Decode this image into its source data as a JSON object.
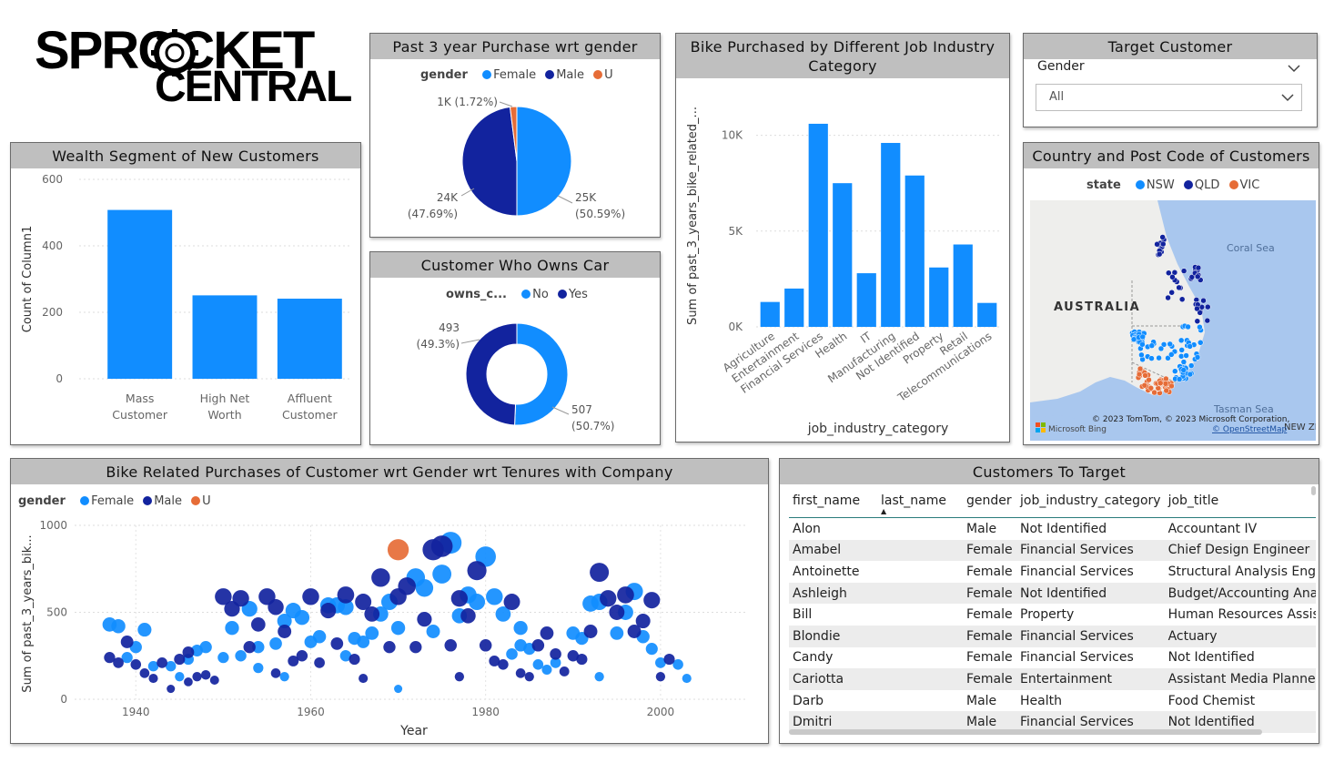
{
  "logo": {
    "line1": "SPROCKET",
    "line2": "CENTRAL"
  },
  "colors": {
    "female": "#118DFF",
    "male": "#12239E",
    "u": "#E66C37",
    "bar": "#118DFF",
    "title_bg": "#bfbfbf",
    "nsw": "#118DFF",
    "qld": "#12239E",
    "vic": "#E66C37"
  },
  "wealth": {
    "title": "Wealth Segment of New Customers",
    "chart_data": {
      "type": "bar",
      "categories": [
        "Mass Customer",
        "High Net Worth",
        "Affluent Customer"
      ],
      "category_lines": [
        [
          "Mass",
          "Customer"
        ],
        [
          "High Net",
          "Worth"
        ],
        [
          "Affluent",
          "Customer"
        ]
      ],
      "values": [
        508,
        251,
        241
      ],
      "ylabel": "Count of Column1",
      "yticks": [
        0,
        200,
        400,
        600
      ],
      "ylim": [
        0,
        600
      ],
      "grid": true
    }
  },
  "gender_pie": {
    "title": "Past 3 year Purchase wrt gender",
    "legend_title": "gender",
    "chart_data": {
      "type": "pie",
      "labels": [
        "Female",
        "Male",
        "U"
      ],
      "values": [
        25000,
        24000,
        1000
      ],
      "percent": [
        50.59,
        47.69,
        1.72
      ],
      "data_labels": [
        [
          "25K",
          "(50.59%)"
        ],
        [
          "24K",
          "(47.69%)"
        ],
        [
          "1K (1.72%)"
        ]
      ]
    }
  },
  "car": {
    "title": "Customer Who Owns Car",
    "legend_title": "owns_c...",
    "chart_data": {
      "type": "pie",
      "labels": [
        "No",
        "Yes"
      ],
      "values": [
        507,
        493
      ],
      "percent": [
        50.7,
        49.3
      ],
      "data_labels": [
        [
          "507",
          "(50.7%)"
        ],
        [
          "493",
          "(49.3%)"
        ]
      ]
    }
  },
  "industry": {
    "title_lines": [
      "Bike Purchased by Different Job Industry",
      "Category"
    ],
    "chart_data": {
      "type": "bar",
      "categories": [
        "Agriculture",
        "Entertainment",
        "Financial Services",
        "Health",
        "IT",
        "Manufacturing",
        "Not Identified",
        "Property",
        "Retail",
        "Telecommunications"
      ],
      "values": [
        1300,
        2000,
        10600,
        7500,
        2800,
        9600,
        7900,
        3100,
        4300,
        1250
      ],
      "ylabel": "Sum of past_3_years_bike_related_...",
      "xlabel": "job_industry_category",
      "yticks": [
        0,
        5000,
        10000
      ],
      "ytick_labels": [
        "0K",
        "5K",
        "10K"
      ],
      "ylim": [
        0,
        11500
      ],
      "grid": true
    }
  },
  "target": {
    "title": "Target Customer",
    "field": "Gender",
    "value": "All"
  },
  "map": {
    "title": "Country and Post Code of Customers",
    "legend_title": "state",
    "legend": [
      "NSW",
      "QLD",
      "VIC"
    ],
    "labels": {
      "country": "AUSTRALIA",
      "sea1": "Coral Sea",
      "sea2": "Tasman Sea",
      "nz": "NEW ZEA"
    },
    "attribution": "© 2023 TomTom, © 2023 Microsoft Corporation,",
    "osm": "© OpenStreetMap",
    "bing": "Microsoft Bing"
  },
  "tenure": {
    "title": "Bike Related Purchases of Customer wrt Gender wrt Tenures with Company",
    "legend_title": "gender",
    "chart_data": {
      "type": "scatter",
      "xlabel": "Year",
      "ylabel": "Sum of past_3_years_bik...",
      "xticks": [
        1940,
        1960,
        1980,
        2000
      ],
      "yticks": [
        0,
        500,
        1000
      ],
      "xlim": [
        1933,
        2010
      ],
      "ylim": [
        0,
        1000
      ],
      "series": [
        {
          "name": "Female",
          "points": [
            [
              1937,
              430
            ],
            [
              1938,
              420
            ],
            [
              1939,
              240
            ],
            [
              1940,
              300
            ],
            [
              1941,
              400
            ],
            [
              1942,
              190
            ],
            [
              1944,
              190
            ],
            [
              1946,
              230
            ],
            [
              1947,
              280
            ],
            [
              1948,
              300
            ],
            [
              1950,
              240
            ],
            [
              1951,
              410
            ],
            [
              1952,
              250
            ],
            [
              1953,
              520
            ],
            [
              1954,
              300
            ],
            [
              1956,
              320
            ],
            [
              1957,
              450
            ],
            [
              1958,
              510
            ],
            [
              1959,
              470
            ],
            [
              1960,
              330
            ],
            [
              1961,
              360
            ],
            [
              1962,
              540
            ],
            [
              1963,
              540
            ],
            [
              1964,
              530
            ],
            [
              1965,
              350
            ],
            [
              1966,
              330
            ],
            [
              1967,
              380
            ],
            [
              1968,
              490
            ],
            [
              1969,
              560
            ],
            [
              1970,
              410
            ],
            [
              1972,
              700
            ],
            [
              1973,
              640
            ],
            [
              1974,
              390
            ],
            [
              1975,
              720
            ],
            [
              1976,
              900
            ],
            [
              1977,
              480
            ],
            [
              1978,
              600
            ],
            [
              1979,
              560
            ],
            [
              1980,
              820
            ],
            [
              1981,
              590
            ],
            [
              1982,
              490
            ],
            [
              1983,
              260
            ],
            [
              1984,
              410
            ],
            [
              1985,
              290
            ],
            [
              1986,
              200
            ],
            [
              1988,
              210
            ],
            [
              1990,
              380
            ],
            [
              1991,
              350
            ],
            [
              1992,
              550
            ],
            [
              1993,
              560
            ],
            [
              1995,
              380
            ],
            [
              1996,
              500
            ],
            [
              1997,
              620
            ],
            [
              1998,
              360
            ],
            [
              1999,
              290
            ],
            [
              2000,
              210
            ],
            [
              2002,
              200
            ],
            [
              2003,
              120
            ],
            [
              1945,
              130
            ],
            [
              1957,
              130
            ],
            [
              1970,
              60
            ],
            [
              1954,
              180
            ],
            [
              1964,
              250
            ],
            [
              1987,
              170
            ],
            [
              1993,
              130
            ],
            [
              1984,
              310
            ]
          ]
        },
        {
          "name": "Male",
          "points": [
            [
              1937,
              240
            ],
            [
              1938,
              210
            ],
            [
              1939,
              330
            ],
            [
              1940,
              200
            ],
            [
              1941,
              150
            ],
            [
              1942,
              120
            ],
            [
              1943,
              210
            ],
            [
              1945,
              230
            ],
            [
              1946,
              270
            ],
            [
              1947,
              130
            ],
            [
              1948,
              140
            ],
            [
              1949,
              110
            ],
            [
              1950,
              590
            ],
            [
              1951,
              520
            ],
            [
              1952,
              580
            ],
            [
              1953,
              300
            ],
            [
              1954,
              430
            ],
            [
              1955,
              590
            ],
            [
              1956,
              530
            ],
            [
              1957,
              390
            ],
            [
              1958,
              220
            ],
            [
              1959,
              250
            ],
            [
              1960,
              590
            ],
            [
              1961,
              210
            ],
            [
              1962,
              510
            ],
            [
              1963,
              320
            ],
            [
              1964,
              600
            ],
            [
              1965,
              230
            ],
            [
              1966,
              560
            ],
            [
              1967,
              490
            ],
            [
              1968,
              700
            ],
            [
              1969,
              300
            ],
            [
              1970,
              590
            ],
            [
              1971,
              650
            ],
            [
              1972,
              300
            ],
            [
              1973,
              460
            ],
            [
              1974,
              860
            ],
            [
              1975,
              880
            ],
            [
              1976,
              310
            ],
            [
              1977,
              580
            ],
            [
              1978,
              480
            ],
            [
              1979,
              740
            ],
            [
              1980,
              310
            ],
            [
              1981,
              220
            ],
            [
              1982,
              200
            ],
            [
              1983,
              560
            ],
            [
              1984,
              150
            ],
            [
              1985,
              130
            ],
            [
              1986,
              310
            ],
            [
              1987,
              380
            ],
            [
              1988,
              260
            ],
            [
              1989,
              160
            ],
            [
              1990,
              250
            ],
            [
              1991,
              230
            ],
            [
              1992,
              390
            ],
            [
              1993,
              730
            ],
            [
              1994,
              580
            ],
            [
              1995,
              500
            ],
            [
              1996,
              600
            ],
            [
              1997,
              390
            ],
            [
              1998,
              450
            ],
            [
              1999,
              570
            ],
            [
              2000,
              130
            ],
            [
              2001,
              230
            ],
            [
              1966,
              120
            ],
            [
              1977,
              130
            ],
            [
              1956,
              150
            ],
            [
              1944,
              60
            ],
            [
              1946,
              100
            ]
          ]
        },
        {
          "name": "U",
          "points": [
            [
              1970,
              860
            ]
          ]
        }
      ]
    }
  },
  "customers": {
    "title": "Customers To Target",
    "columns": [
      "first_name",
      "last_name",
      "gender",
      "job_industry_category",
      "job_title"
    ],
    "rows": [
      [
        "Alon",
        "",
        "Male",
        "Not Identified",
        "Accountant IV"
      ],
      [
        "Amabel",
        "",
        "Female",
        "Financial Services",
        "Chief Design Engineer"
      ],
      [
        "Antoinette",
        "",
        "Female",
        "Financial Services",
        "Structural Analysis Engi"
      ],
      [
        "Ashleigh",
        "",
        "Female",
        "Not Identified",
        "Budget/Accounting Ana"
      ],
      [
        "Bill",
        "",
        "Female",
        "Property",
        "Human Resources Assis"
      ],
      [
        "Blondie",
        "",
        "Female",
        "Financial Services",
        "Actuary"
      ],
      [
        "Candy",
        "",
        "Female",
        "Financial Services",
        "Not Identified"
      ],
      [
        "Cariotta",
        "",
        "Female",
        "Entertainment",
        "Assistant Media Planner"
      ],
      [
        "Darb",
        "",
        "Male",
        "Health",
        "Food Chemist"
      ],
      [
        "Dmitri",
        "",
        "Male",
        "Financial Services",
        "Not Identified"
      ]
    ]
  }
}
